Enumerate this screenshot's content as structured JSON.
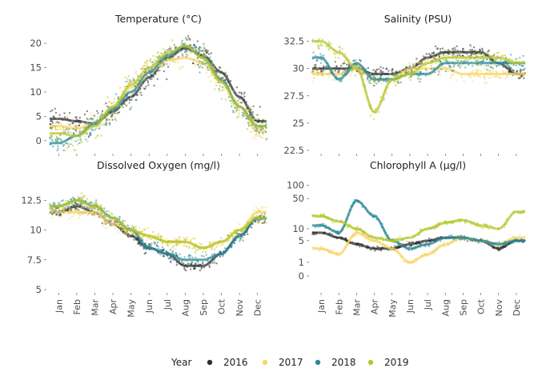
{
  "chart_data": [
    {
      "type": "scatter",
      "title": "Temperature (°C)",
      "xlabel": "",
      "ylabel": "",
      "scale": "linear",
      "ylim": [
        -2,
        22
      ],
      "yticks": [
        0,
        5,
        10,
        15,
        20
      ],
      "ytick_labels": [
        "0",
        "5",
        "10",
        "15",
        "20"
      ],
      "x_axis_months": [
        "Jan",
        "Feb",
        "Mar",
        "Apr",
        "May",
        "Jun",
        "Jul",
        "Aug",
        "Sep",
        "Oct",
        "Nov",
        "Dec"
      ],
      "x_months": [
        0.5,
        1.5,
        2.5,
        3.5,
        4.5,
        5.5,
        6.5,
        7.5,
        8.5,
        9.5,
        10.5,
        11.5
      ],
      "series": [
        {
          "name": "2016",
          "values": [
            4.5,
            4,
            3.5,
            6,
            9,
            13,
            17,
            19,
            17.5,
            14,
            9,
            4
          ]
        },
        {
          "name": "2017",
          "values": [
            3,
            2.5,
            3.5,
            7,
            11,
            14,
            16.5,
            17,
            16,
            12,
            7,
            2
          ]
        },
        {
          "name": "2018",
          "values": [
            -0.5,
            1,
            3.5,
            6.5,
            10,
            14,
            17.5,
            19.5,
            17,
            12.5,
            7,
            3
          ]
        },
        {
          "name": "2019",
          "values": [
            1.5,
            1,
            3,
            7,
            11.5,
            15,
            18,
            19.5,
            17,
            12,
            7,
            3
          ]
        }
      ]
    },
    {
      "type": "scatter",
      "title": "Salinity (PSU)",
      "xlabel": "",
      "ylabel": "",
      "scale": "linear",
      "ylim": [
        22.5,
        33.2
      ],
      "yticks": [
        22.5,
        25,
        27.5,
        30,
        32.5
      ],
      "ytick_labels": [
        "22.5",
        "25",
        "27.5",
        "30",
        "32.5"
      ],
      "x_axis_months": [
        "Jan",
        "Feb",
        "Mar",
        "Apr",
        "May",
        "Jun",
        "Jul",
        "Aug",
        "Sep",
        "Oct",
        "Nov",
        "Dec"
      ],
      "x_months": [
        0.5,
        1.5,
        2.5,
        3.5,
        4.5,
        5.5,
        6.5,
        7.5,
        8.5,
        9.5,
        10.5,
        11.5
      ],
      "series": [
        {
          "name": "2016",
          "values": [
            30,
            30,
            30,
            29.5,
            29.5,
            30,
            31,
            31.5,
            31.5,
            31.5,
            30.5,
            29.5
          ]
        },
        {
          "name": "2017",
          "values": [
            29.5,
            29.5,
            30,
            29,
            29,
            30,
            30,
            30,
            29.5,
            29.5,
            29.5,
            29.5
          ]
        },
        {
          "name": "2018",
          "values": [
            31,
            29,
            30.5,
            29,
            29,
            29.5,
            29.5,
            30.5,
            30.5,
            30.5,
            30.5,
            30.5
          ]
        },
        {
          "name": "2019",
          "values": [
            32.5,
            31.5,
            30,
            26,
            29,
            29.5,
            30.5,
            31,
            31,
            31,
            31,
            30.5
          ]
        }
      ]
    },
    {
      "type": "scatter",
      "title": "Dissolved Oxygen (mg/l)",
      "xlabel": "",
      "ylabel": "",
      "scale": "linear",
      "ylim": [
        5,
        14.2
      ],
      "yticks": [
        5,
        7.5,
        10,
        12.5
      ],
      "ytick_labels": [
        "5",
        "7.5",
        "10",
        "12.5"
      ],
      "x_axis_months": [
        "Jan",
        "Feb",
        "Mar",
        "Apr",
        "May",
        "Jun",
        "Jul",
        "Aug",
        "Sep",
        "Oct",
        "Nov",
        "Dec"
      ],
      "x_months": [
        0.5,
        1.5,
        2.5,
        3.5,
        4.5,
        5.5,
        6.5,
        7.5,
        8.5,
        9.5,
        10.5,
        11.5
      ],
      "series": [
        {
          "name": "2016",
          "values": [
            11.5,
            12,
            11.5,
            10.5,
            9.5,
            8.5,
            8,
            7,
            7,
            8,
            9.5,
            11
          ]
        },
        {
          "name": "2017",
          "values": [
            11.5,
            11.5,
            11.5,
            10.5,
            10,
            9.5,
            9,
            9,
            8.5,
            9,
            10,
            11.5
          ]
        },
        {
          "name": "2018",
          "values": [
            12,
            12.5,
            12,
            11,
            10,
            8.5,
            8,
            7.5,
            7.5,
            8,
            9.5,
            11
          ]
        },
        {
          "name": "2019",
          "values": [
            12,
            12.5,
            12,
            11,
            10,
            9.5,
            9,
            9,
            8.5,
            9,
            10,
            11
          ]
        }
      ]
    },
    {
      "type": "scatter",
      "title": "Chlorophyll A (µg/l)",
      "xlabel": "",
      "ylabel": "",
      "scale": "log1p",
      "ylim": [
        -0.5,
        130
      ],
      "yticks": [
        0,
        1,
        5,
        10,
        50,
        100
      ],
      "ytick_labels": [
        "0",
        "1",
        "5",
        "10",
        "50",
        "100"
      ],
      "x_axis_months": [
        "Jan",
        "Feb",
        "Mar",
        "Apr",
        "May",
        "Jun",
        "Jul",
        "Aug",
        "Sep",
        "Oct",
        "Nov",
        "Dec"
      ],
      "x_months": [
        0.5,
        1.5,
        2.5,
        3.5,
        4.5,
        5.5,
        6.5,
        7.5,
        8.5,
        9.5,
        10.5,
        11.5
      ],
      "series": [
        {
          "name": "2016",
          "values": [
            8,
            6,
            4,
            3,
            3,
            4,
            5,
            6,
            6,
            5,
            3,
            5
          ]
        },
        {
          "name": "2017",
          "values": [
            3,
            2,
            8,
            5,
            3,
            1,
            2,
            4,
            6,
            5,
            4,
            6
          ]
        },
        {
          "name": "2018",
          "values": [
            12,
            8,
            45,
            20,
            5,
            3,
            4,
            6,
            6,
            5,
            4,
            5
          ]
        },
        {
          "name": "2019",
          "values": [
            20,
            15,
            10,
            6,
            5,
            6,
            10,
            14,
            16,
            12,
            10,
            25
          ]
        }
      ]
    }
  ],
  "legend": {
    "title": "Year",
    "entries": [
      {
        "label": "2016",
        "color": "#2e2e2e"
      },
      {
        "label": "2017",
        "color": "#f7d665"
      },
      {
        "label": "2018",
        "color": "#2b8a99"
      },
      {
        "label": "2019",
        "color": "#b7c62b"
      }
    ]
  },
  "colors": {
    "2016": "#2e2e2e",
    "2017": "#f7d665",
    "2018": "#2b8a99",
    "2019": "#b7c62b"
  }
}
